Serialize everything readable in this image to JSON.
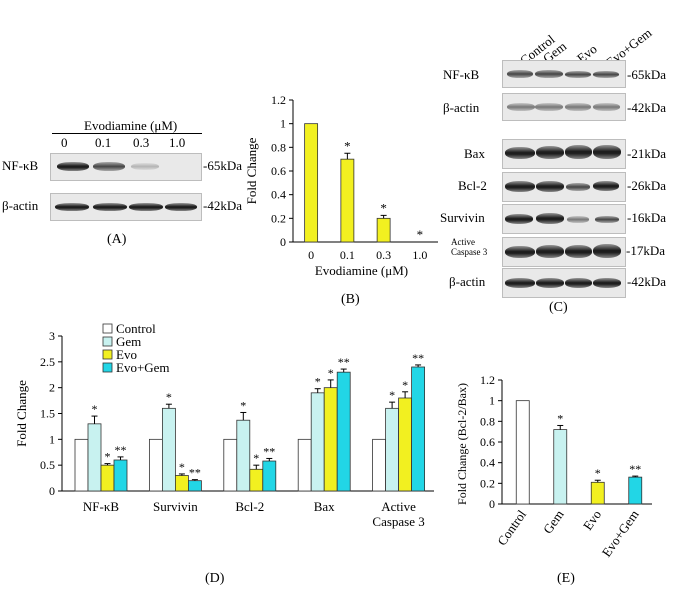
{
  "panel_letters": [
    "(A)",
    "(B)",
    "(C)",
    "(D)",
    "(E)"
  ],
  "panel_a": {
    "header": "Evodiamine  (μM)",
    "doses": [
      "0",
      "0.1",
      "0.3",
      "1.0"
    ],
    "rows": [
      {
        "name": "NF-κB",
        "size": "-65kDa"
      },
      {
        "name": "β-actin",
        "size": "-42kDa"
      }
    ]
  },
  "panel_c": {
    "columns": [
      "Control",
      "Gem",
      "Evo",
      "Evo+Gem"
    ],
    "rows": [
      {
        "name": "NF-κB",
        "size": "-65kDa"
      },
      {
        "name": "β-actin",
        "size": "-42kDa"
      },
      {
        "name": "Bax",
        "size": "-21kDa"
      },
      {
        "name": "Bcl-2",
        "size": "-26kDa"
      },
      {
        "name": "Survivin",
        "size": "-16kDa"
      },
      {
        "name": "Active",
        "name2": "Caspase 3",
        "size": "-17kDa"
      },
      {
        "name": "β-actin",
        "size": "-42kDa"
      }
    ]
  },
  "chart_data": [
    {
      "type": "bar",
      "panel": "B",
      "xlabel": "Evodiamine  (μM)",
      "ylabel": "Fold Change",
      "categories": [
        "0",
        "0.1",
        "0.3",
        "1.0"
      ],
      "values": [
        1.0,
        0.7,
        0.2,
        0.0
      ],
      "errors": [
        0,
        0.05,
        0.025,
        0
      ],
      "significance": [
        "",
        "*",
        "*",
        "*"
      ],
      "ylim": [
        0,
        1.2
      ],
      "yticks": [
        "0",
        "0.2",
        "0.4",
        "0.6",
        "0.8",
        "1",
        "1.2"
      ],
      "color": "#f2f020"
    },
    {
      "type": "bar",
      "panel": "D",
      "ylabel": "Fold Change",
      "categories": [
        "NF-κB",
        "Survivin",
        "Bcl-2",
        "Bax",
        "Active\nCaspase 3"
      ],
      "series": [
        {
          "name": "Control",
          "color": "#ffffff",
          "values": [
            1,
            1,
            1,
            1,
            1
          ],
          "errors": [
            0,
            0,
            0,
            0,
            0
          ],
          "significance": [
            "",
            "",
            "",
            "",
            ""
          ]
        },
        {
          "name": "Gem",
          "color": "#c8f2f0",
          "values": [
            1.3,
            1.6,
            1.37,
            1.9,
            1.6
          ],
          "errors": [
            0.15,
            0.08,
            0.15,
            0.08,
            0.12
          ],
          "significance": [
            "*",
            "*",
            "*",
            "*",
            "*"
          ]
        },
        {
          "name": "Evo",
          "color": "#f2f020",
          "values": [
            0.5,
            0.3,
            0.42,
            2.0,
            1.8
          ],
          "errors": [
            0.03,
            0.03,
            0.08,
            0.15,
            0.12
          ],
          "significance": [
            "*",
            "*",
            "*",
            "*",
            "*"
          ]
        },
        {
          "name": "Evo+Gem",
          "color": "#22d6e6",
          "values": [
            0.6,
            0.2,
            0.58,
            2.3,
            2.4
          ],
          "errors": [
            0.06,
            0.02,
            0.05,
            0.06,
            0.04
          ],
          "significance": [
            "**",
            "**",
            "**",
            "**",
            "**"
          ]
        }
      ],
      "ylim": [
        0,
        3
      ],
      "yticks": [
        "0",
        "0.5",
        "1",
        "1.5",
        "2",
        "2.5",
        "3"
      ],
      "legend": "top-left"
    },
    {
      "type": "bar",
      "panel": "E",
      "ylabel": "Fold Change (Bcl-2/Bax)",
      "categories": [
        "Control",
        "Gem",
        "Evo",
        "Evo+Gem"
      ],
      "values": [
        1.0,
        0.72,
        0.21,
        0.26
      ],
      "errors": [
        0,
        0.04,
        0.02,
        0.01
      ],
      "significance": [
        "",
        "*",
        "*",
        "**"
      ],
      "colors": [
        "#ffffff",
        "#c8f2f0",
        "#f2f020",
        "#22d6e6"
      ],
      "ylim": [
        0,
        1.2
      ],
      "yticks": [
        "0",
        "0.2",
        "0.4",
        "0.6",
        "0.8",
        "1",
        "1.2"
      ]
    }
  ]
}
